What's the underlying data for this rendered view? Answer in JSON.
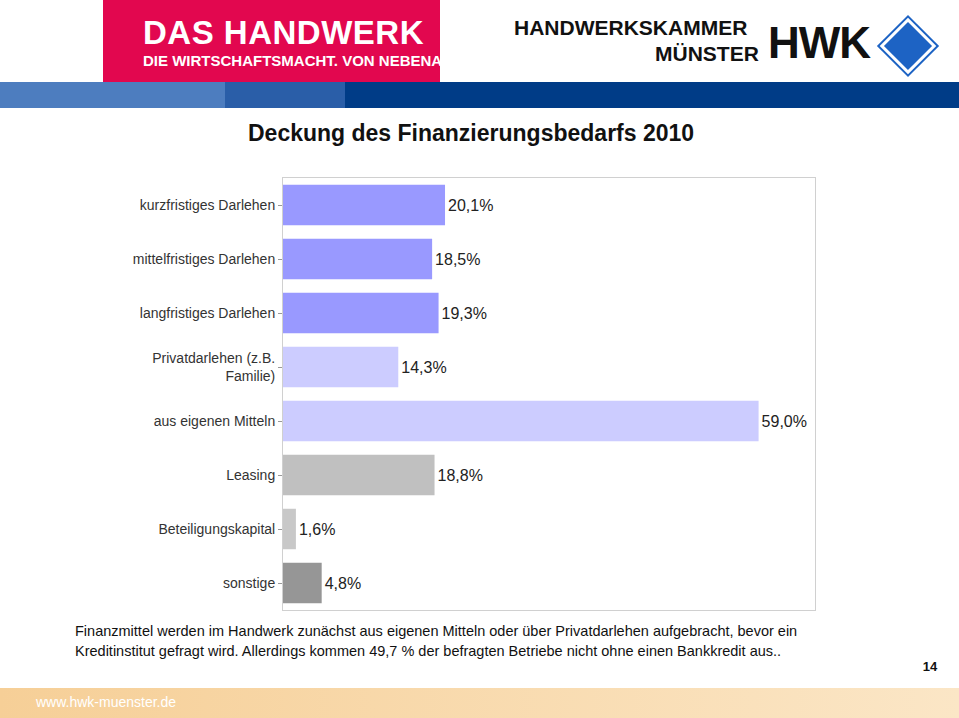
{
  "header": {
    "brand": "DAS HANDWERK",
    "slogan": "DIE WIRTSCHAFTSMACHT. VON NEBENAN.",
    "chamber": [
      "HANDWERKSKAMMER",
      "MÜNSTER"
    ],
    "logo": "HWK"
  },
  "chart_data": {
    "type": "bar",
    "title": "Deckung des Finanzierungsbedarfs 2010",
    "orientation": "horizontal",
    "categories": [
      "kurzfristiges Darlehen",
      "mittelfristiges Darlehen",
      "langfristiges Darlehen",
      "Privatdarlehen (z.B. Familie)",
      "aus eigenen Mitteln",
      "Leasing",
      "Beteiligungskapital",
      "sonstige"
    ],
    "values": [
      20.1,
      18.5,
      19.3,
      14.3,
      59.0,
      18.8,
      1.6,
      4.8
    ],
    "value_labels": [
      "20,1%",
      "18,5%",
      "19,3%",
      "14,3%",
      "59,0%",
      "18,8%",
      "1,6%",
      "4,8%"
    ],
    "colors": [
      "#9999ff",
      "#9999ff",
      "#9999ff",
      "#ccccff",
      "#ccccff",
      "#c0c0c0",
      "#c8c8c8",
      "#969696"
    ],
    "data_labels": true,
    "tick_labels": "y",
    "grid": false,
    "xlim": [
      0,
      66
    ],
    "xticks": []
  },
  "note": [
    "Finanzmittel werden im Handwerk zunächst aus eigenen Mitteln oder über Privatdarlehen aufgebracht, bevor ein",
    "Kreditinstitut gefragt wird. Allerdings kommen 49,7 % der befragten Betriebe nicht ohne einen Bankkredit aus.."
  ],
  "footer": {
    "url": "www.hwk-muenster.de",
    "page": "14"
  }
}
